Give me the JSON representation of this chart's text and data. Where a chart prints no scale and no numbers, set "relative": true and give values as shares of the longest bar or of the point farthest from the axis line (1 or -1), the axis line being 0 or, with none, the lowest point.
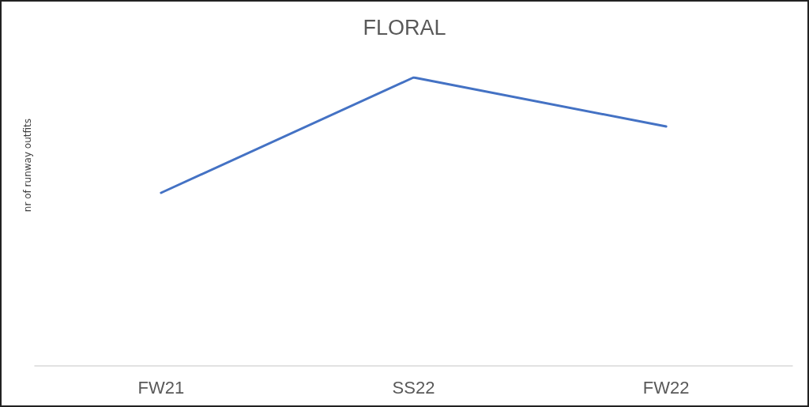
{
  "chart_data": {
    "type": "line",
    "title": "FLORAL",
    "ylabel": "nr of runway outfits",
    "relative": true,
    "categories": [
      "FW21",
      "SS22",
      "FW22"
    ],
    "series": [
      {
        "color": "#4472c4",
        "values": [
          0.6,
          1,
          0.83
        ]
      }
    ],
    "marker": "none",
    "line_style": "solid",
    "grid": false
  }
}
